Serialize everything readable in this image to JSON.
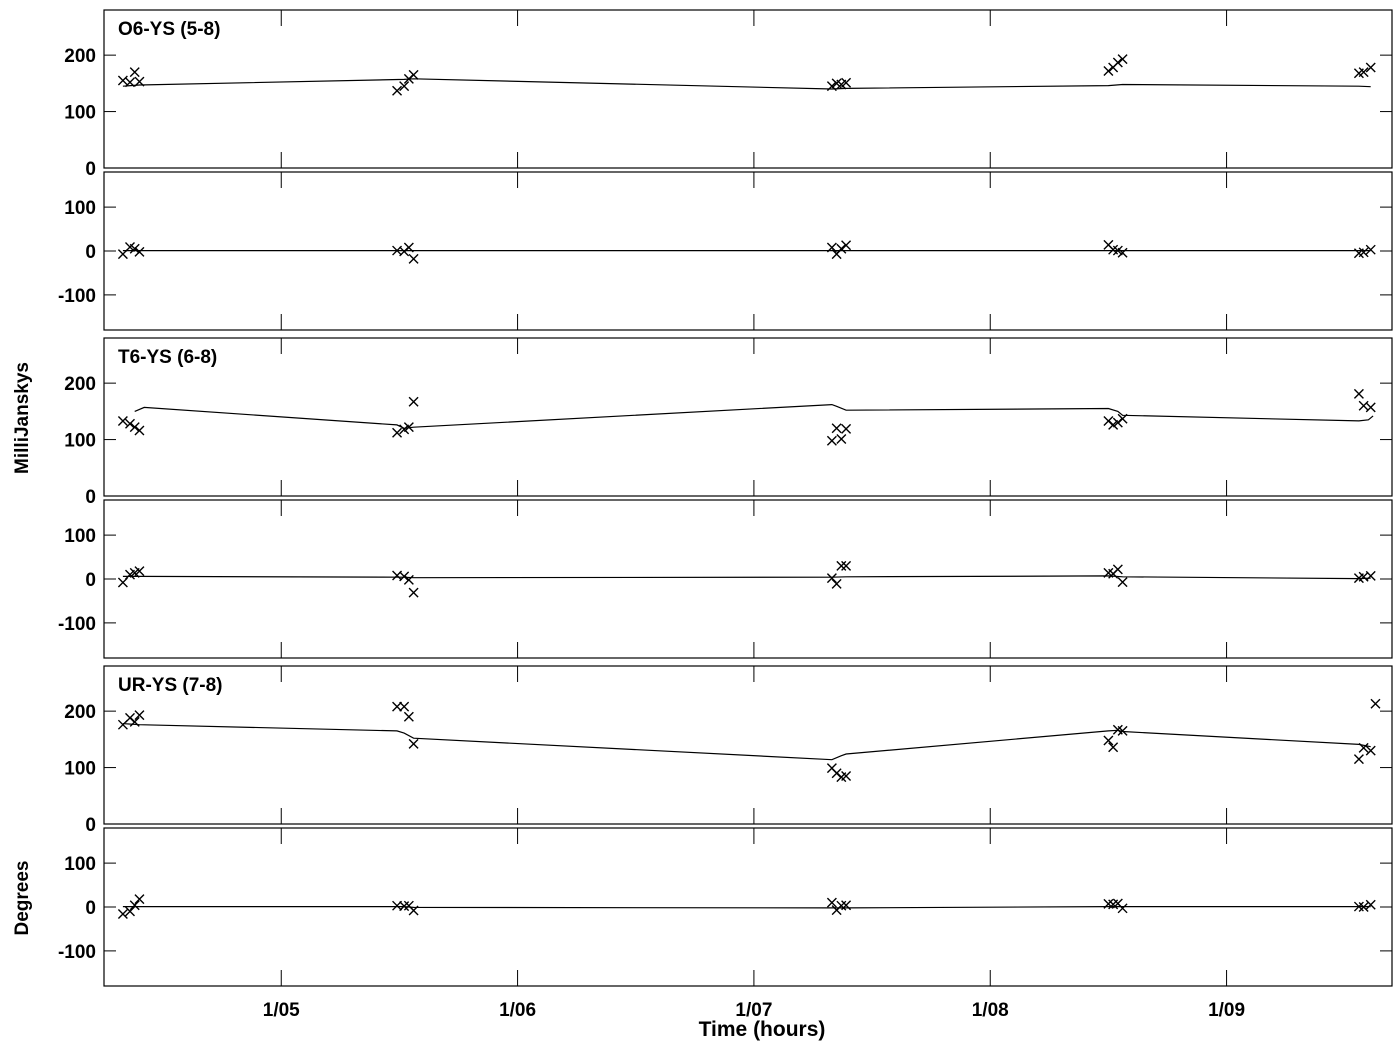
{
  "chart_data": {
    "type": "scatter",
    "xlabel": "Time (hours)",
    "ylabel_amplitude": "MilliJanskys",
    "ylabel_phase": "Degrees",
    "x_tick_labels": [
      "1/05",
      "1/06",
      "1/07",
      "1/08",
      "1/09"
    ],
    "x_ticks": [
      5,
      6,
      7,
      8,
      9
    ],
    "xlim": [
      4.25,
      9.7
    ],
    "amplitude_ylim": [
      0,
      280
    ],
    "phase_ylim": [
      -180,
      180
    ],
    "amplitude_ticks": [
      0,
      100,
      200
    ],
    "phase_ticks": [
      -100,
      0,
      100
    ],
    "legend": "none",
    "baselines": [
      {
        "name": "O6-YS (5-8)",
        "amplitude": {
          "points": [
            [
              4.33,
              155
            ],
            [
              4.36,
              152
            ],
            [
              4.38,
              170
            ],
            [
              4.4,
              153
            ],
            [
              5.49,
              137
            ],
            [
              5.52,
              145
            ],
            [
              5.54,
              158
            ],
            [
              5.56,
              165
            ],
            [
              7.33,
              145
            ],
            [
              7.35,
              150
            ],
            [
              7.37,
              148
            ],
            [
              7.39,
              151
            ],
            [
              8.5,
              172
            ],
            [
              8.52,
              178
            ],
            [
              8.54,
              187
            ],
            [
              8.56,
              193
            ],
            [
              9.56,
              168
            ],
            [
              9.58,
              170
            ],
            [
              9.61,
              178
            ]
          ],
          "model": [
            [
              4.33,
              145
            ],
            [
              4.4,
              147
            ],
            [
              5.52,
              157
            ],
            [
              5.56,
              158
            ],
            [
              7.33,
              140
            ],
            [
              7.39,
              141
            ],
            [
              8.5,
              146
            ],
            [
              8.56,
              148
            ],
            [
              9.56,
              145
            ],
            [
              9.61,
              144
            ]
          ]
        },
        "phase": {
          "points": [
            [
              4.33,
              -7
            ],
            [
              4.36,
              9
            ],
            [
              4.38,
              5
            ],
            [
              4.4,
              -2
            ],
            [
              5.49,
              1
            ],
            [
              5.52,
              -1
            ],
            [
              5.54,
              8
            ],
            [
              5.56,
              -18
            ],
            [
              7.33,
              8
            ],
            [
              7.35,
              -7
            ],
            [
              7.37,
              5
            ],
            [
              7.39,
              13
            ],
            [
              8.5,
              14
            ],
            [
              8.52,
              3
            ],
            [
              8.54,
              1
            ],
            [
              8.56,
              -4
            ],
            [
              9.56,
              -5
            ],
            [
              9.58,
              -3
            ],
            [
              9.61,
              3
            ]
          ],
          "model": [
            [
              4.33,
              1
            ],
            [
              4.4,
              1
            ],
            [
              5.52,
              1
            ],
            [
              5.56,
              1
            ],
            [
              7.33,
              1
            ],
            [
              7.39,
              1
            ],
            [
              8.5,
              1
            ],
            [
              9.61,
              1
            ]
          ]
        }
      },
      {
        "name": "T6-YS (6-8)",
        "amplitude": {
          "points": [
            [
              4.33,
              133
            ],
            [
              4.36,
              128
            ],
            [
              4.38,
              122
            ],
            [
              4.4,
              116
            ],
            [
              5.49,
              112
            ],
            [
              5.52,
              118
            ],
            [
              5.54,
              122
            ],
            [
              5.56,
              167
            ],
            [
              7.33,
              98
            ],
            [
              7.35,
              120
            ],
            [
              7.37,
              101
            ],
            [
              7.39,
              119
            ],
            [
              8.5,
              133
            ],
            [
              8.52,
              126
            ],
            [
              8.54,
              130
            ],
            [
              8.56,
              137
            ],
            [
              9.56,
              181
            ],
            [
              9.58,
              160
            ],
            [
              9.61,
              157
            ]
          ],
          "model": [
            [
              4.38,
              150
            ],
            [
              4.42,
              157
            ],
            [
              5.49,
              126
            ],
            [
              5.52,
              120
            ],
            [
              5.56,
              122
            ],
            [
              7.33,
              162
            ],
            [
              7.35,
              159
            ],
            [
              7.39,
              152
            ],
            [
              8.5,
              155
            ],
            [
              8.54,
              150
            ],
            [
              8.56,
              143
            ],
            [
              9.56,
              133
            ],
            [
              9.6,
              135
            ],
            [
              9.62,
              142
            ]
          ]
        },
        "phase": {
          "points": [
            [
              4.33,
              -8
            ],
            [
              4.36,
              10
            ],
            [
              4.38,
              14
            ],
            [
              4.4,
              18
            ],
            [
              5.49,
              8
            ],
            [
              5.52,
              6
            ],
            [
              5.54,
              -2
            ],
            [
              5.56,
              -31
            ],
            [
              7.33,
              2
            ],
            [
              7.35,
              -11
            ],
            [
              7.37,
              30
            ],
            [
              7.39,
              30
            ],
            [
              8.5,
              14
            ],
            [
              8.52,
              12
            ],
            [
              8.54,
              22
            ],
            [
              8.56,
              -7
            ],
            [
              9.56,
              2
            ],
            [
              9.58,
              5
            ],
            [
              9.61,
              7
            ]
          ],
          "model": [
            [
              4.33,
              6
            ],
            [
              4.4,
              6
            ],
            [
              5.52,
              4
            ],
            [
              5.56,
              3
            ],
            [
              7.33,
              4
            ],
            [
              7.39,
              5
            ],
            [
              8.5,
              7
            ],
            [
              8.56,
              5
            ],
            [
              9.56,
              1
            ],
            [
              9.61,
              2
            ]
          ]
        }
      },
      {
        "name": "UR-YS (7-8)",
        "amplitude": {
          "points": [
            [
              4.33,
              176
            ],
            [
              4.36,
              188
            ],
            [
              4.38,
              181
            ],
            [
              4.4,
              193
            ],
            [
              5.49,
              208
            ],
            [
              5.52,
              208
            ],
            [
              5.54,
              190
            ],
            [
              5.56,
              142
            ],
            [
              7.33,
              99
            ],
            [
              7.35,
              90
            ],
            [
              7.37,
              83
            ],
            [
              7.39,
              85
            ],
            [
              8.5,
              148
            ],
            [
              8.52,
              136
            ],
            [
              8.54,
              167
            ],
            [
              8.56,
              165
            ],
            [
              9.56,
              115
            ],
            [
              9.58,
              135
            ],
            [
              9.61,
              130
            ],
            [
              9.63,
              213
            ]
          ],
          "model": [
            [
              4.33,
              178
            ],
            [
              4.4,
              176
            ],
            [
              5.49,
              165
            ],
            [
              5.52,
              161
            ],
            [
              5.56,
              152
            ],
            [
              7.33,
              114
            ],
            [
              7.37,
              121
            ],
            [
              7.39,
              124
            ],
            [
              8.5,
              165
            ],
            [
              8.54,
              166
            ],
            [
              8.56,
              164
            ],
            [
              9.56,
              141
            ],
            [
              9.61,
              137
            ]
          ]
        },
        "phase": {
          "points": [
            [
              4.33,
              -16
            ],
            [
              4.36,
              -10
            ],
            [
              4.38,
              4
            ],
            [
              4.4,
              18
            ],
            [
              5.49,
              3
            ],
            [
              5.52,
              2
            ],
            [
              5.54,
              3
            ],
            [
              5.56,
              -8
            ],
            [
              7.33,
              10
            ],
            [
              7.35,
              -7
            ],
            [
              7.37,
              3
            ],
            [
              7.39,
              4
            ],
            [
              8.5,
              7
            ],
            [
              8.52,
              6
            ],
            [
              8.54,
              8
            ],
            [
              8.56,
              -3
            ],
            [
              9.56,
              1
            ],
            [
              9.58,
              0
            ],
            [
              9.61,
              5
            ]
          ],
          "model": [
            [
              4.33,
              1
            ],
            [
              4.4,
              1
            ],
            [
              5.52,
              1
            ],
            [
              5.56,
              -1
            ],
            [
              7.33,
              -2
            ],
            [
              7.39,
              -2
            ],
            [
              8.5,
              1
            ],
            [
              8.56,
              1
            ],
            [
              9.56,
              1
            ],
            [
              9.61,
              1
            ]
          ]
        }
      }
    ]
  }
}
